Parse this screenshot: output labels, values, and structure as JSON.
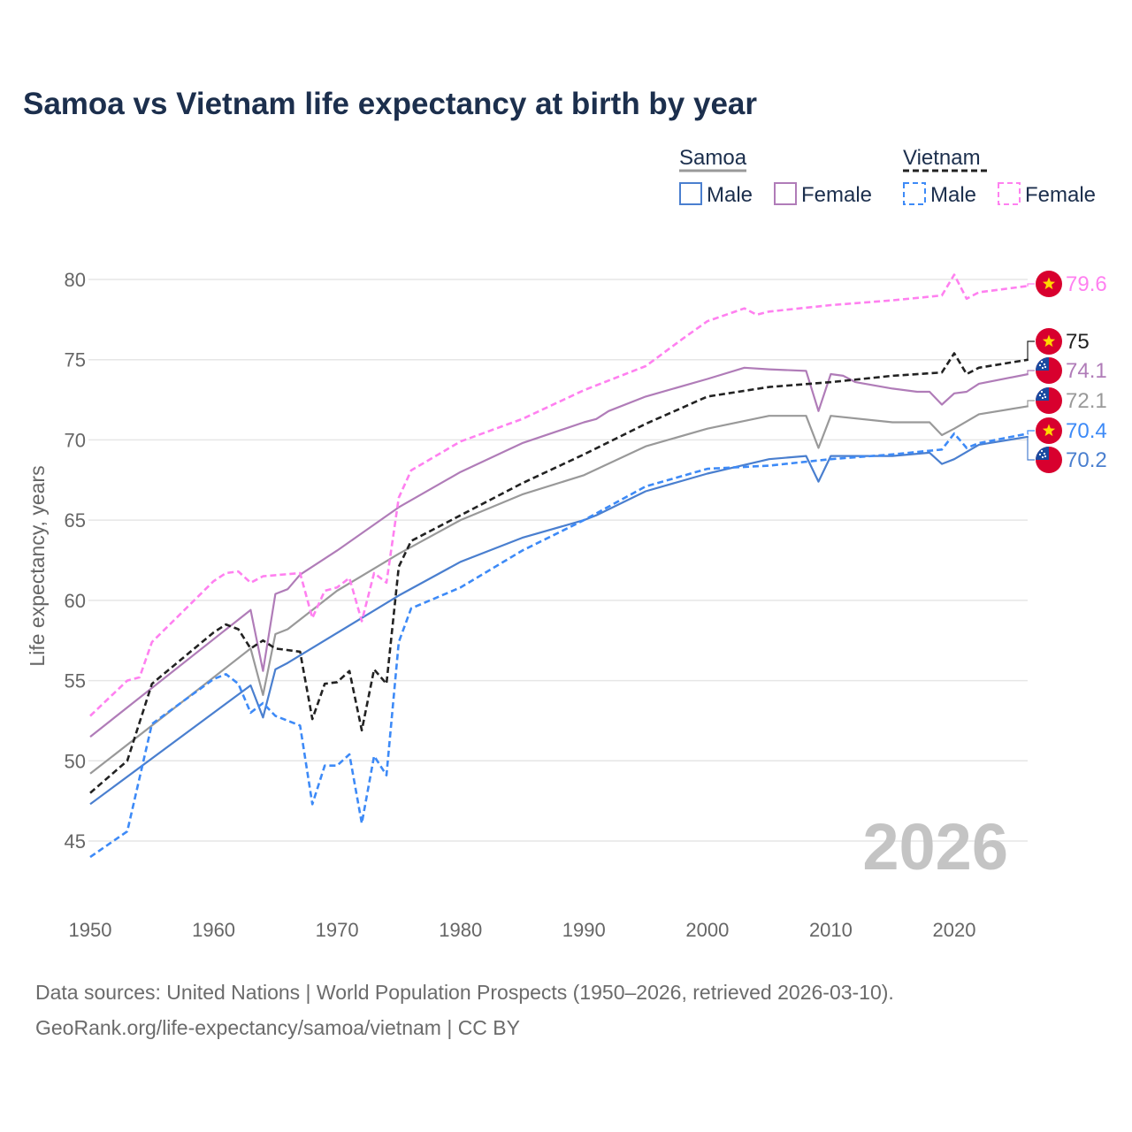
{
  "chart_data": {
    "type": "line",
    "title": "Samoa vs Vietnam life expectancy at birth by year",
    "xlabel": "",
    "ylabel": "Life expectancy, years",
    "xlim": [
      1950,
      2026
    ],
    "ylim": [
      42,
      82
    ],
    "xticks": [
      "1950",
      "1960",
      "1970",
      "1980",
      "1990",
      "2000",
      "2010",
      "2020"
    ],
    "yticks": [
      "45",
      "50",
      "55",
      "60",
      "65",
      "70",
      "75",
      "80"
    ],
    "grid": true,
    "year_label": "2026",
    "legend": {
      "placement": "top-right",
      "groups": [
        {
          "name": "Samoa",
          "items": [
            "Male",
            "Female"
          ]
        },
        {
          "name": "Vietnam",
          "items": [
            "Male",
            "Female"
          ]
        }
      ]
    },
    "series": [
      {
        "name": "Samoa Female",
        "color": "#b07cb8",
        "dash": false,
        "end_label": "74.1",
        "flag": "samoa",
        "points": [
          [
            1950,
            51.5
          ],
          [
            1963,
            59.4
          ],
          [
            1964,
            55.6
          ],
          [
            1965,
            60.4
          ],
          [
            1966,
            60.7
          ],
          [
            1967,
            61.6
          ],
          [
            1970,
            63.1
          ],
          [
            1975,
            65.8
          ],
          [
            1980,
            68.0
          ],
          [
            1985,
            69.8
          ],
          [
            1990,
            71.1
          ],
          [
            1991,
            71.3
          ],
          [
            1992,
            71.8
          ],
          [
            1995,
            72.7
          ],
          [
            2000,
            73.8
          ],
          [
            2003,
            74.5
          ],
          [
            2005,
            74.4
          ],
          [
            2008,
            74.3
          ],
          [
            2009,
            71.8
          ],
          [
            2010,
            74.1
          ],
          [
            2011,
            74.0
          ],
          [
            2012,
            73.6
          ],
          [
            2015,
            73.2
          ],
          [
            2017,
            73.0
          ],
          [
            2018,
            73.0
          ],
          [
            2019,
            72.2
          ],
          [
            2020,
            72.9
          ],
          [
            2021,
            73.0
          ],
          [
            2022,
            73.5
          ],
          [
            2026,
            74.1
          ]
        ]
      },
      {
        "name": "Samoa Total",
        "color": "#999999",
        "dash": false,
        "end_label": "72.1",
        "flag": "samoa",
        "points": [
          [
            1950,
            49.2
          ],
          [
            1963,
            57.0
          ],
          [
            1964,
            54.1
          ],
          [
            1965,
            57.9
          ],
          [
            1966,
            58.2
          ],
          [
            1970,
            60.6
          ],
          [
            1975,
            62.9
          ],
          [
            1980,
            65.0
          ],
          [
            1985,
            66.6
          ],
          [
            1990,
            67.8
          ],
          [
            1995,
            69.6
          ],
          [
            2000,
            70.7
          ],
          [
            2005,
            71.5
          ],
          [
            2008,
            71.5
          ],
          [
            2009,
            69.5
          ],
          [
            2010,
            71.5
          ],
          [
            2015,
            71.1
          ],
          [
            2018,
            71.1
          ],
          [
            2019,
            70.3
          ],
          [
            2020,
            70.7
          ],
          [
            2022,
            71.6
          ],
          [
            2026,
            72.1
          ]
        ]
      },
      {
        "name": "Samoa Male",
        "color": "#4a7fcf",
        "dash": false,
        "end_label": "70.2",
        "flag": "samoa",
        "points": [
          [
            1950,
            47.3
          ],
          [
            1963,
            54.7
          ],
          [
            1964,
            52.7
          ],
          [
            1965,
            55.7
          ],
          [
            1966,
            56.1
          ],
          [
            1975,
            60.3
          ],
          [
            1980,
            62.4
          ],
          [
            1985,
            63.9
          ],
          [
            1990,
            65.0
          ],
          [
            1991,
            65.3
          ],
          [
            1995,
            66.8
          ],
          [
            2000,
            67.9
          ],
          [
            2005,
            68.8
          ],
          [
            2008,
            69.0
          ],
          [
            2009,
            67.4
          ],
          [
            2010,
            69.0
          ],
          [
            2015,
            69.0
          ],
          [
            2018,
            69.2
          ],
          [
            2019,
            68.5
          ],
          [
            2020,
            68.8
          ],
          [
            2022,
            69.7
          ],
          [
            2026,
            70.2
          ]
        ]
      },
      {
        "name": "Vietnam Female",
        "color": "#ff80f0",
        "dash": true,
        "end_label": "79.6",
        "flag": "vietnam",
        "points": [
          [
            1950,
            52.8
          ],
          [
            1953,
            55.0
          ],
          [
            1954,
            55.2
          ],
          [
            1955,
            57.4
          ],
          [
            1960,
            61.2
          ],
          [
            1961,
            61.7
          ],
          [
            1962,
            61.8
          ],
          [
            1963,
            61.1
          ],
          [
            1964,
            61.5
          ],
          [
            1967,
            61.7
          ],
          [
            1968,
            58.9
          ],
          [
            1969,
            60.6
          ],
          [
            1970,
            60.8
          ],
          [
            1971,
            61.4
          ],
          [
            1972,
            58.7
          ],
          [
            1973,
            61.7
          ],
          [
            1974,
            61.1
          ],
          [
            1975,
            66.4
          ],
          [
            1976,
            68.1
          ],
          [
            1980,
            69.9
          ],
          [
            1985,
            71.3
          ],
          [
            1990,
            73.1
          ],
          [
            1995,
            74.6
          ],
          [
            1998,
            76.3
          ],
          [
            2000,
            77.4
          ],
          [
            2003,
            78.2
          ],
          [
            2004,
            77.8
          ],
          [
            2005,
            78.0
          ],
          [
            2010,
            78.4
          ],
          [
            2015,
            78.7
          ],
          [
            2019,
            79.0
          ],
          [
            2020,
            80.3
          ],
          [
            2021,
            78.8
          ],
          [
            2022,
            79.2
          ],
          [
            2026,
            79.6
          ]
        ]
      },
      {
        "name": "Vietnam Total",
        "color": "#222222",
        "dash": true,
        "end_label": "75",
        "flag": "vietnam",
        "points": [
          [
            1950,
            48.0
          ],
          [
            1953,
            50.0
          ],
          [
            1955,
            54.8
          ],
          [
            1960,
            58.0
          ],
          [
            1961,
            58.5
          ],
          [
            1962,
            58.2
          ],
          [
            1963,
            57.0
          ],
          [
            1964,
            57.5
          ],
          [
            1965,
            57.0
          ],
          [
            1967,
            56.8
          ],
          [
            1968,
            52.6
          ],
          [
            1969,
            54.8
          ],
          [
            1970,
            54.9
          ],
          [
            1971,
            55.6
          ],
          [
            1972,
            51.9
          ],
          [
            1973,
            55.7
          ],
          [
            1974,
            54.8
          ],
          [
            1975,
            62.1
          ],
          [
            1976,
            63.7
          ],
          [
            1980,
            65.3
          ],
          [
            1985,
            67.3
          ],
          [
            1990,
            69.1
          ],
          [
            1995,
            71.0
          ],
          [
            2000,
            72.7
          ],
          [
            2005,
            73.3
          ],
          [
            2010,
            73.6
          ],
          [
            2015,
            74.0
          ],
          [
            2019,
            74.2
          ],
          [
            2020,
            75.4
          ],
          [
            2021,
            74.1
          ],
          [
            2022,
            74.5
          ],
          [
            2026,
            75.0
          ]
        ]
      },
      {
        "name": "Vietnam Male",
        "color": "#3d8af7",
        "dash": true,
        "end_label": "70.4",
        "flag": "vietnam",
        "points": [
          [
            1950,
            44.0
          ],
          [
            1953,
            45.6
          ],
          [
            1955,
            52.3
          ],
          [
            1960,
            55.1
          ],
          [
            1961,
            55.4
          ],
          [
            1962,
            54.8
          ],
          [
            1963,
            53.0
          ],
          [
            1964,
            53.6
          ],
          [
            1965,
            52.8
          ],
          [
            1967,
            52.2
          ],
          [
            1968,
            47.3
          ],
          [
            1969,
            49.7
          ],
          [
            1970,
            49.7
          ],
          [
            1971,
            50.4
          ],
          [
            1972,
            46.1
          ],
          [
            1973,
            50.3
          ],
          [
            1974,
            49.1
          ],
          [
            1975,
            57.4
          ],
          [
            1976,
            59.5
          ],
          [
            1980,
            60.8
          ],
          [
            1985,
            63.1
          ],
          [
            1990,
            65.0
          ],
          [
            1995,
            67.1
          ],
          [
            2000,
            68.2
          ],
          [
            2005,
            68.4
          ],
          [
            2010,
            68.8
          ],
          [
            2015,
            69.1
          ],
          [
            2019,
            69.4
          ],
          [
            2020,
            70.4
          ],
          [
            2021,
            69.5
          ],
          [
            2022,
            69.8
          ],
          [
            2026,
            70.4
          ]
        ]
      }
    ]
  },
  "source": {
    "line1": "Data sources: United Nations | World Population Prospects (1950–2026, retrieved 2026-03-10).",
    "line2": "GeoRank.org/life-expectancy/samoa/vietnam | CC BY"
  }
}
